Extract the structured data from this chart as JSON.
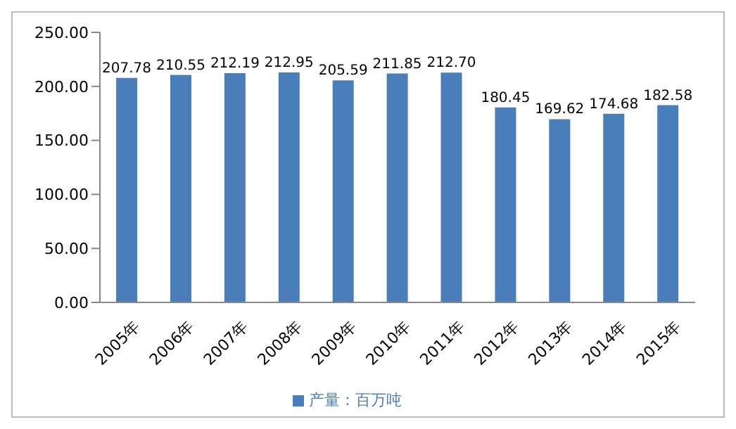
{
  "chart_data": {
    "type": "bar",
    "categories": [
      "2005年",
      "2006年",
      "2007年",
      "2008年",
      "2009年",
      "2010年",
      "2011年",
      "2012年",
      "2013年",
      "2014年",
      "2015年"
    ],
    "series": [
      {
        "name": "产量：百万吨",
        "color": "#4a7ebb",
        "values": [
          207.78,
          210.55,
          212.19,
          212.95,
          205.59,
          211.85,
          212.7,
          180.45,
          169.62,
          174.68,
          182.58
        ],
        "value_labels": [
          "207.78",
          "210.55",
          "212.19",
          "212.95",
          "205.59",
          "211.85",
          "212.70",
          "180.45",
          "169.62",
          "174.68",
          "182.58"
        ]
      }
    ],
    "ylim": [
      0,
      250
    ],
    "yticks": [
      {
        "value": 0,
        "label": "0.00"
      },
      {
        "value": 50,
        "label": "50.00"
      },
      {
        "value": 100,
        "label": "100.00"
      },
      {
        "value": 150,
        "label": "150.00"
      },
      {
        "value": 200,
        "label": "200.00"
      },
      {
        "value": 250,
        "label": "250.00"
      }
    ],
    "grid": false,
    "legend": "bottom"
  }
}
